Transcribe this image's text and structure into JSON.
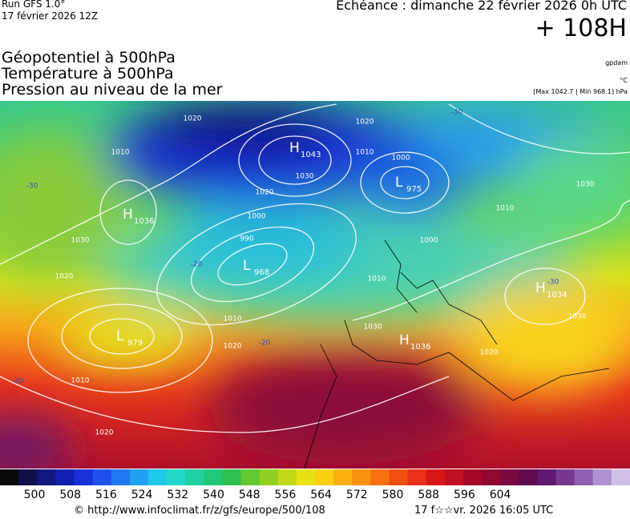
{
  "header": {
    "run": "Run GFS 1.0°",
    "run_date": "17 février 2026 12Z",
    "valid": "Echéance : dimanche 22 février 2026 0h UTC",
    "lead": "+ 108H"
  },
  "titles": [
    "Géopotentiel à 500hPa",
    "Température à 500hPa",
    "Pression au niveau de la mer"
  ],
  "units": {
    "geopotential": "gpdam",
    "temperature": "°C",
    "pressure_range": "[Max 1042.7 | Min 968.1] hPa"
  },
  "map": {
    "centers": [
      {
        "letter": "H",
        "value": "1043"
      },
      {
        "letter": "L",
        "value": "975"
      },
      {
        "letter": "H",
        "value": "1036"
      },
      {
        "letter": "L",
        "value": "968"
      },
      {
        "letter": "L",
        "value": "979"
      },
      {
        "letter": "H",
        "value": "1036"
      },
      {
        "letter": "H",
        "value": "1034"
      }
    ],
    "isobar_labels": [
      "1020",
      "1020",
      "1010",
      "1030",
      "1020",
      "1000",
      "990",
      "1030",
      "1020",
      "1010",
      "1000",
      "1010",
      "1020",
      "1010",
      "1020",
      "1030",
      "1010",
      "1030",
      "1020",
      "1010",
      "1030",
      "1000"
    ],
    "temperature_labels": [
      "-30",
      "-30",
      "-20",
      "-20",
      "-30",
      "-20"
    ]
  },
  "colorbar": {
    "labels": [
      "500",
      "508",
      "516",
      "524",
      "532",
      "540",
      "548",
      "556",
      "564",
      "572",
      "580",
      "588",
      "596",
      "604"
    ]
  },
  "footer": {
    "url": "© http://www.infoclimat.fr/z/gfs/europe/500/108",
    "generated": "17 f☆☆vr. 2026 16:05 UTC"
  }
}
